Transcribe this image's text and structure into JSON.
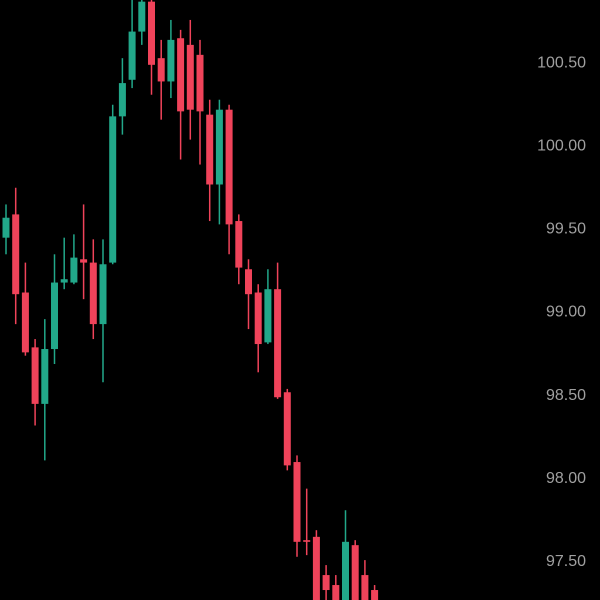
{
  "chart_data": {
    "type": "candlestick",
    "up_color": "#22a88a",
    "down_color": "#f0435a",
    "open": [
      99.45,
      99.59,
      99.12,
      98.79,
      98.45,
      98.78,
      99.18,
      99.18,
      99.32,
      99.3,
      98.93,
      99.3,
      100.18,
      100.4,
      100.69,
      100.87,
      100.53,
      100.39,
      100.65,
      100.61,
      100.55,
      100.19,
      99.77,
      100.22,
      99.55,
      99.26,
      99.12,
      98.82,
      99.14,
      98.52,
      98.1,
      97.63,
      97.65,
      97.42,
      97.36,
      97.27,
      97.6,
      97.42,
      97.33
    ],
    "high": [
      99.65,
      99.75,
      99.3,
      98.84,
      98.96,
      99.35,
      99.45,
      99.47,
      99.65,
      99.44,
      99.44,
      100.25,
      100.53,
      100.88,
      100.88,
      100.88,
      100.64,
      100.76,
      100.7,
      100.76,
      100.64,
      100.28,
      100.28,
      100.25,
      99.59,
      99.32,
      99.17,
      99.26,
      99.3,
      98.54,
      98.14,
      97.94,
      97.69,
      97.48,
      97.42,
      97.81,
      97.63,
      97.51,
      97.36
    ],
    "low": [
      99.35,
      98.93,
      98.74,
      98.32,
      98.11,
      98.69,
      99.14,
      99.17,
      99.08,
      98.84,
      98.58,
      99.29,
      100.07,
      100.35,
      100.61,
      100.31,
      100.16,
      100.29,
      99.92,
      100.04,
      99.89,
      99.55,
      99.53,
      99.35,
      99.17,
      98.9,
      98.64,
      98.81,
      98.48,
      98.05,
      97.53,
      97.54,
      97.27,
      97.27,
      97.27,
      97.27,
      97.27,
      97.27,
      97.27
    ],
    "close": [
      99.57,
      99.11,
      98.76,
      98.45,
      98.78,
      99.18,
      99.2,
      99.33,
      99.3,
      98.93,
      99.29,
      100.18,
      100.38,
      100.69,
      100.87,
      100.49,
      100.39,
      100.64,
      100.21,
      100.22,
      100.21,
      99.77,
      100.22,
      99.53,
      99.27,
      99.11,
      98.81,
      99.14,
      98.49,
      98.08,
      97.62,
      97.62,
      97.27,
      97.33,
      97.27,
      97.62,
      97.27,
      97.27,
      97.27
    ],
    "ylim": [
      97.27,
      100.88
    ],
    "yticks": [
      {
        "value": 97.5,
        "label": "97.50"
      },
      {
        "value": 98,
        "label": "98.00"
      },
      {
        "value": 98.5,
        "label": "98.50"
      },
      {
        "value": 99,
        "label": "99.00"
      },
      {
        "value": 99.5,
        "label": "99.50"
      },
      {
        "value": 100,
        "label": "100.00"
      },
      {
        "value": 100.5,
        "label": "100.50"
      }
    ]
  }
}
